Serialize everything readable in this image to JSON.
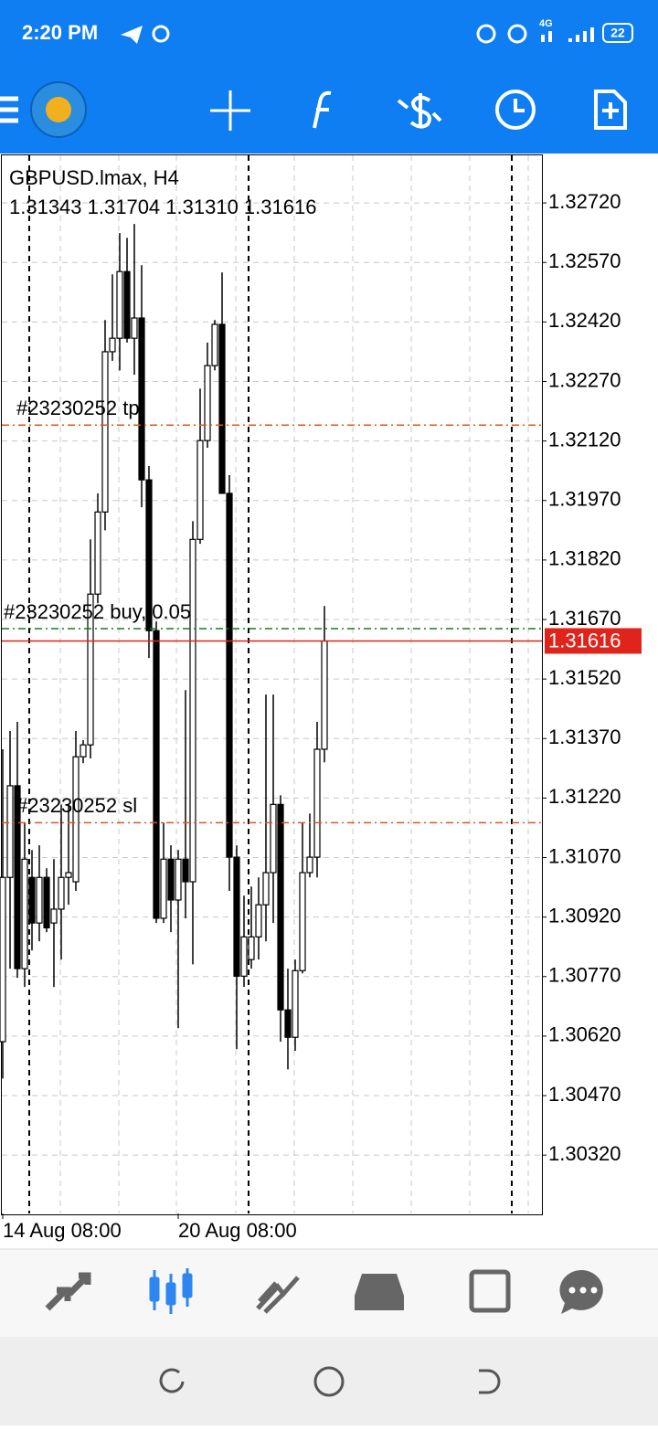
{
  "status_bar": {
    "time": "2:20 PM",
    "network": "4G",
    "battery": "22"
  },
  "chart_data": {
    "type": "candlestick",
    "symbol": "GBPUSD.lmax, H4",
    "ohlc_text": "1.31343 1.31704 1.31310 1.31616",
    "categories": [
      "14 Aug 08:00",
      null,
      null,
      null,
      null,
      null,
      null,
      null,
      null,
      null,
      null,
      null,
      null,
      null,
      null,
      null,
      null,
      null,
      null,
      null,
      null,
      null,
      null,
      null,
      "20 Aug 08:00",
      null,
      null,
      null,
      null,
      null,
      null,
      null,
      null,
      null,
      null,
      null,
      null,
      null,
      null,
      null,
      null,
      null,
      null,
      null,
      null
    ],
    "open": [
      1.30606,
      1.3102,
      1.31251,
      1.3079,
      1.3102,
      1.30905,
      1.3102,
      1.30905,
      1.3094,
      1.3102,
      1.31009,
      1.31324,
      1.31354,
      1.31734,
      1.31941,
      1.32345,
      1.32379,
      1.32547,
      1.32379,
      1.3243,
      1.32022,
      1.31642,
      1.30917,
      1.31066,
      1.30963,
      1.31066,
      1.31009,
      1.31872,
      1.32121,
      1.3231,
      1.32414,
      1.31988,
      1.31071,
      1.30771,
      1.30813,
      1.3087,
      1.30951,
      1.31032,
      1.31204,
      1.30686,
      1.30617,
      1.30785,
      1.31032,
      1.31071,
      1.31343
    ],
    "high": [
      1.31343,
      1.31389,
      1.31412,
      1.31158,
      1.31089,
      1.31101,
      1.31043,
      1.31066,
      1.31204,
      1.31204,
      1.31389,
      1.31366,
      1.31872,
      1.31988,
      1.32425,
      1.3254,
      1.32644,
      1.32632,
      1.32667,
      1.32563,
      1.32057,
      1.31665,
      1.31158,
      1.31101,
      1.31089,
      1.31492,
      1.31918,
      1.32252,
      1.32368,
      1.32425,
      1.32545,
      1.32034,
      1.31101,
      1.30974,
      1.30997,
      1.3102,
      1.31481,
      1.31481,
      1.31227,
      1.3079,
      1.30813,
      1.31158,
      1.31181,
      1.31412,
      1.31704
    ],
    "low": [
      1.30513,
      1.3079,
      1.30767,
      1.30744,
      1.30836,
      1.30859,
      1.30882,
      1.30744,
      1.30813,
      1.30951,
      1.30986,
      1.31308,
      1.3132,
      1.31711,
      1.31895,
      1.32322,
      1.32298,
      1.32368,
      1.32287,
      1.31953,
      1.31573,
      1.30905,
      1.30905,
      1.30882,
      1.3064,
      1.30917,
      1.30801,
      1.31861,
      1.32103,
      1.32298,
      1.31988,
      1.30986,
      1.30587,
      1.30744,
      1.3079,
      1.30813,
      1.30859,
      1.30905,
      1.30606,
      1.30536,
      1.30583,
      1.30778,
      1.3102,
      1.3102,
      1.3131
    ],
    "close": [
      1.3102,
      1.31251,
      1.3079,
      1.31066,
      1.30905,
      1.3102,
      1.30893,
      1.3094,
      1.3102,
      1.31032,
      1.31324,
      1.31354,
      1.31734,
      1.31941,
      1.32345,
      1.32379,
      1.32547,
      1.32379,
      1.3243,
      1.32022,
      1.31642,
      1.30917,
      1.31066,
      1.30963,
      1.31066,
      1.31009,
      1.31872,
      1.32121,
      1.3231,
      1.32414,
      1.31988,
      1.31071,
      1.30771,
      1.3087,
      1.3087,
      1.30951,
      1.31032,
      1.31204,
      1.30686,
      1.30617,
      1.30785,
      1.31032,
      1.31071,
      1.31343,
      1.31616
    ],
    "up_color": "#ffffff",
    "down_color": "#000000",
    "ylim": [
      1.30173,
      1.3284
    ],
    "yticks": [
      {
        "value": 1.3272,
        "label": "1.32720"
      },
      {
        "value": 1.3257,
        "label": "1.32570"
      },
      {
        "value": 1.3242,
        "label": "1.32420"
      },
      {
        "value": 1.3227,
        "label": "1.32270"
      },
      {
        "value": 1.3212,
        "label": "1.32120"
      },
      {
        "value": 1.3197,
        "label": "1.31970"
      },
      {
        "value": 1.3182,
        "label": "1.31820"
      },
      {
        "value": 1.3167,
        "label": "1.31670"
      },
      {
        "value": 1.3152,
        "label": "1.31520"
      },
      {
        "value": 1.3137,
        "label": "1.31370"
      },
      {
        "value": 1.3122,
        "label": "1.31220"
      },
      {
        "value": 1.3107,
        "label": "1.31070"
      },
      {
        "value": 1.3092,
        "label": "1.30920"
      },
      {
        "value": 1.3077,
        "label": "1.30770"
      },
      {
        "value": 1.3062,
        "label": "1.30620"
      },
      {
        "value": 1.3047,
        "label": "1.30470"
      },
      {
        "value": 1.3032,
        "label": "1.30320"
      }
    ],
    "grid": true,
    "price_line": 1.31616,
    "price_color": "#e0241b",
    "orders": [
      {
        "label": "#23230252 tp",
        "value": 1.3216,
        "color": "#e8501a"
      },
      {
        "label": "#23230252 buy, 0.05",
        "value": 1.31647,
        "color": "#1a7a1a"
      },
      {
        "label": "#23230252 sl",
        "value": 1.31158,
        "color": "#e8501a"
      }
    ]
  }
}
